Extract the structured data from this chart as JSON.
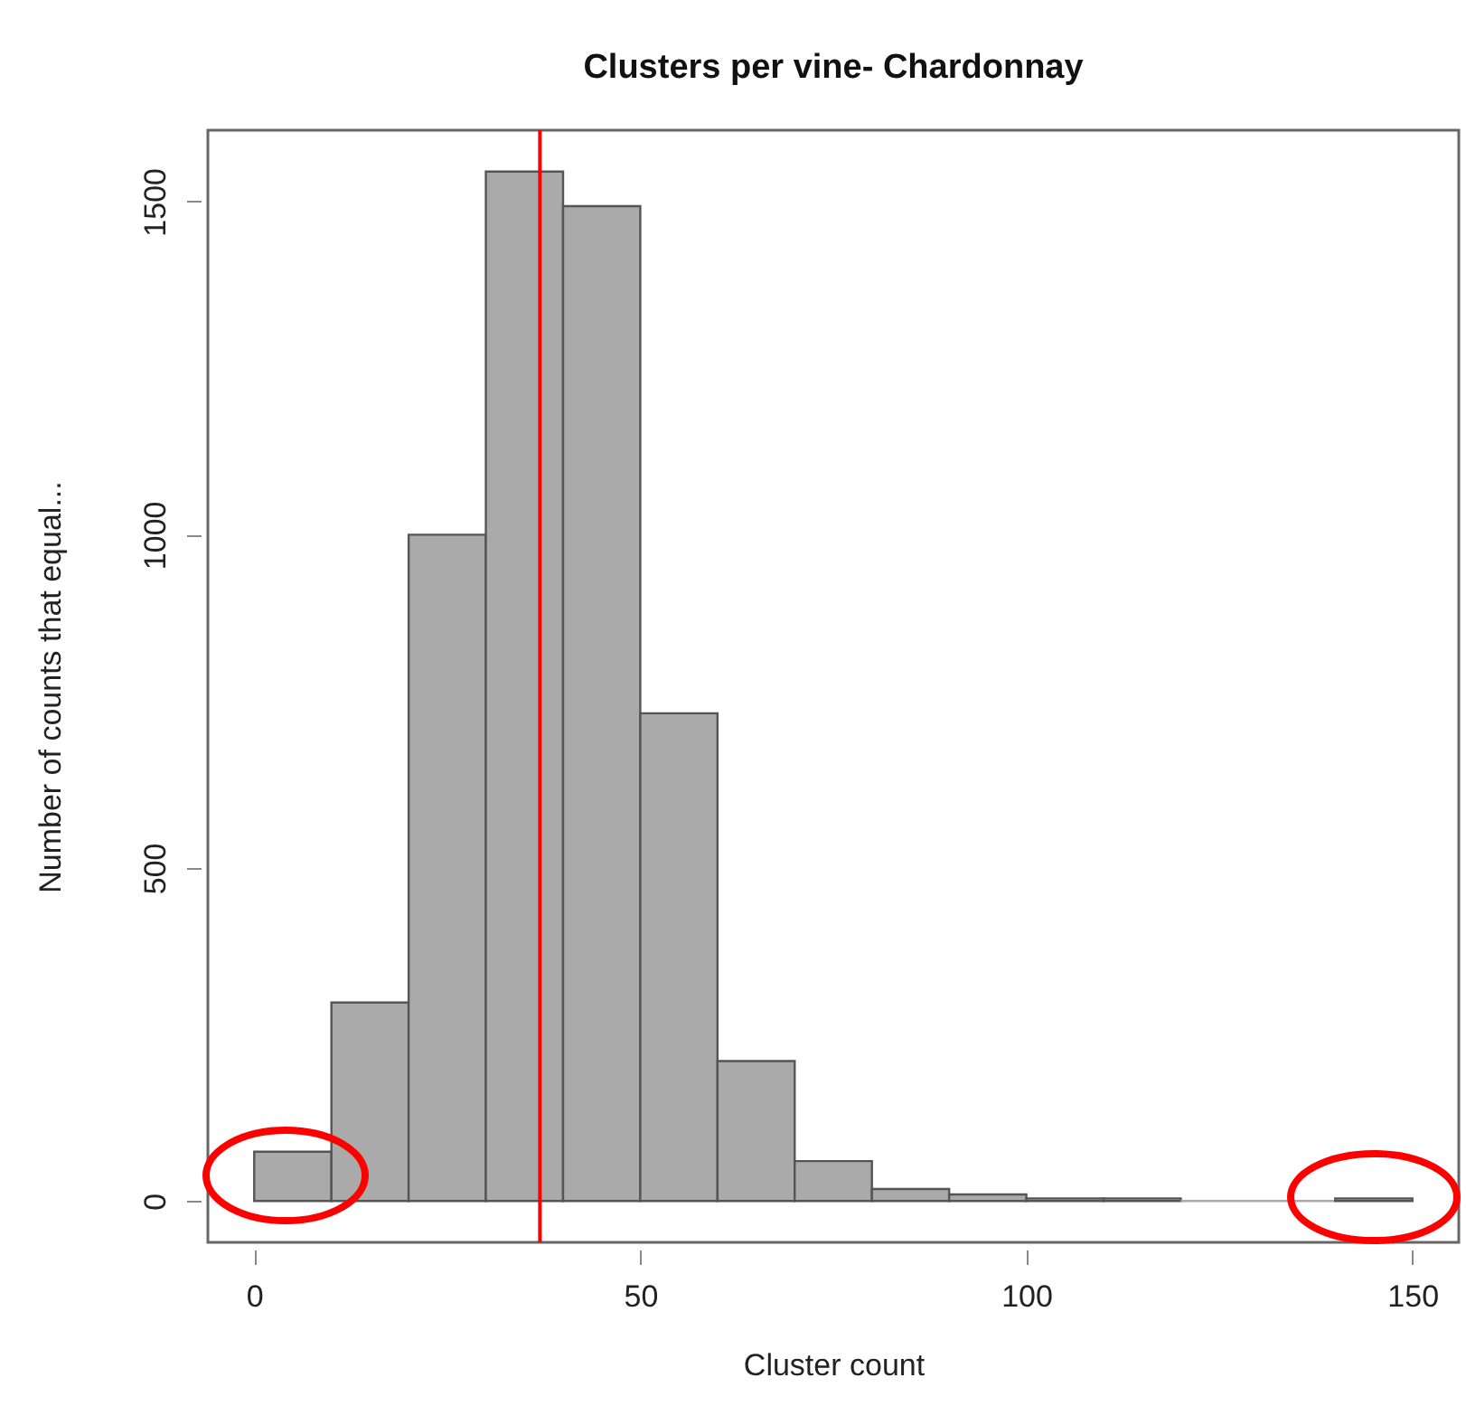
{
  "chart_data": {
    "type": "histogram",
    "title": "Clusters per vine- Chardonnay",
    "xlabel": "Cluster count",
    "ylabel": "Number of counts that equal...",
    "bins": [
      0,
      10,
      20,
      30,
      40,
      50,
      60,
      70,
      80,
      90,
      100,
      110,
      120,
      130,
      140,
      150
    ],
    "values": [
      74,
      298,
      1000,
      1545,
      1493,
      732,
      210,
      60,
      18,
      10,
      4,
      4,
      0,
      0,
      4
    ],
    "color": "#aaaaaa",
    "xlim": [
      -6,
      156
    ],
    "xticks": [
      0,
      50,
      100,
      150
    ],
    "ylim": [
      -62,
      1607
    ],
    "yticks": [
      0,
      500,
      1000,
      1500
    ],
    "grid": false,
    "ref_lines": [
      {
        "axis": "x",
        "value": 37,
        "color": "#ff0000"
      }
    ]
  }
}
